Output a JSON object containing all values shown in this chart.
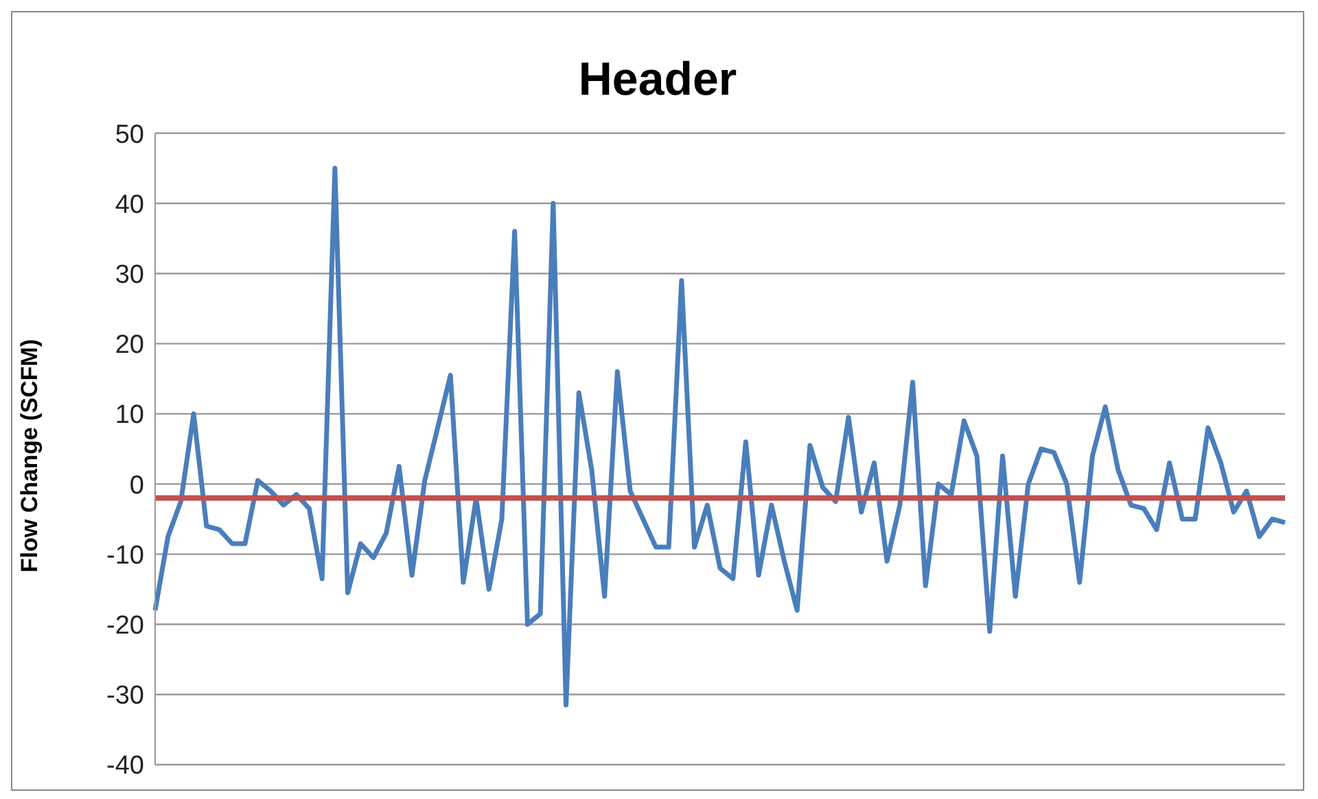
{
  "chart_data": {
    "type": "line",
    "title": "Header",
    "ylabel": "Flow Change (SCFM)",
    "categories": [
      null,
      null,
      null,
      null,
      null,
      null,
      null,
      null,
      null,
      null,
      null,
      null,
      null,
      null,
      null,
      null,
      null,
      null,
      null,
      null,
      null,
      null,
      null,
      null,
      null,
      null,
      null,
      null,
      null,
      null,
      null,
      null,
      null,
      null,
      null,
      null,
      null,
      null,
      null,
      null,
      null,
      null,
      null,
      null,
      null,
      null,
      null,
      null,
      null,
      null,
      null,
      null,
      null,
      null,
      null,
      null,
      null,
      null,
      null,
      null,
      null,
      null,
      null,
      null,
      null,
      null,
      null,
      null,
      null,
      null,
      null,
      null,
      null,
      null,
      null,
      null,
      null,
      null,
      null,
      null,
      null,
      null,
      null,
      null,
      null,
      null,
      null,
      null,
      null
    ],
    "series": [
      {
        "color": "#4a7ebb",
        "values": [
          -18,
          -7.5,
          -2.5,
          10,
          -6,
          -6.5,
          -8.5,
          -8.5,
          0.5,
          -1,
          -3,
          -1.5,
          -3.5,
          -13.5,
          45,
          -15.5,
          -8.5,
          -10.5,
          -7,
          2.5,
          -13,
          0.5,
          8,
          15.5,
          -14,
          -2,
          -15,
          -5,
          36,
          -20,
          -18.5,
          40,
          -31.5,
          13,
          2,
          -16,
          16,
          -1,
          -5,
          -9,
          -9,
          29,
          -9,
          -3,
          -12,
          -13.5,
          6,
          -13,
          -3,
          -11,
          -18,
          5.5,
          -0.5,
          -2.5,
          9.5,
          -4,
          3,
          -11,
          -3,
          14.5,
          -14.5,
          0,
          -1.5,
          9,
          4,
          -21,
          4,
          -16,
          0,
          5,
          4.5,
          0,
          -14,
          4,
          11,
          2,
          -3,
          -3.5,
          -6.5,
          3,
          -5,
          -5,
          8,
          3,
          -4,
          -1,
          -7.5,
          -5,
          -5.5
        ]
      }
    ],
    "ref_lines": [
      {
        "axis": "y",
        "value": -2,
        "color": "#c0504d"
      }
    ],
    "ylim": [
      -40,
      50
    ],
    "yticks": [
      -40,
      -30,
      -20,
      -10,
      0,
      10,
      20,
      30,
      40,
      50
    ],
    "grid": "y",
    "tick_labels": "y",
    "legend": false,
    "marker": "none",
    "line_style": "solid"
  }
}
